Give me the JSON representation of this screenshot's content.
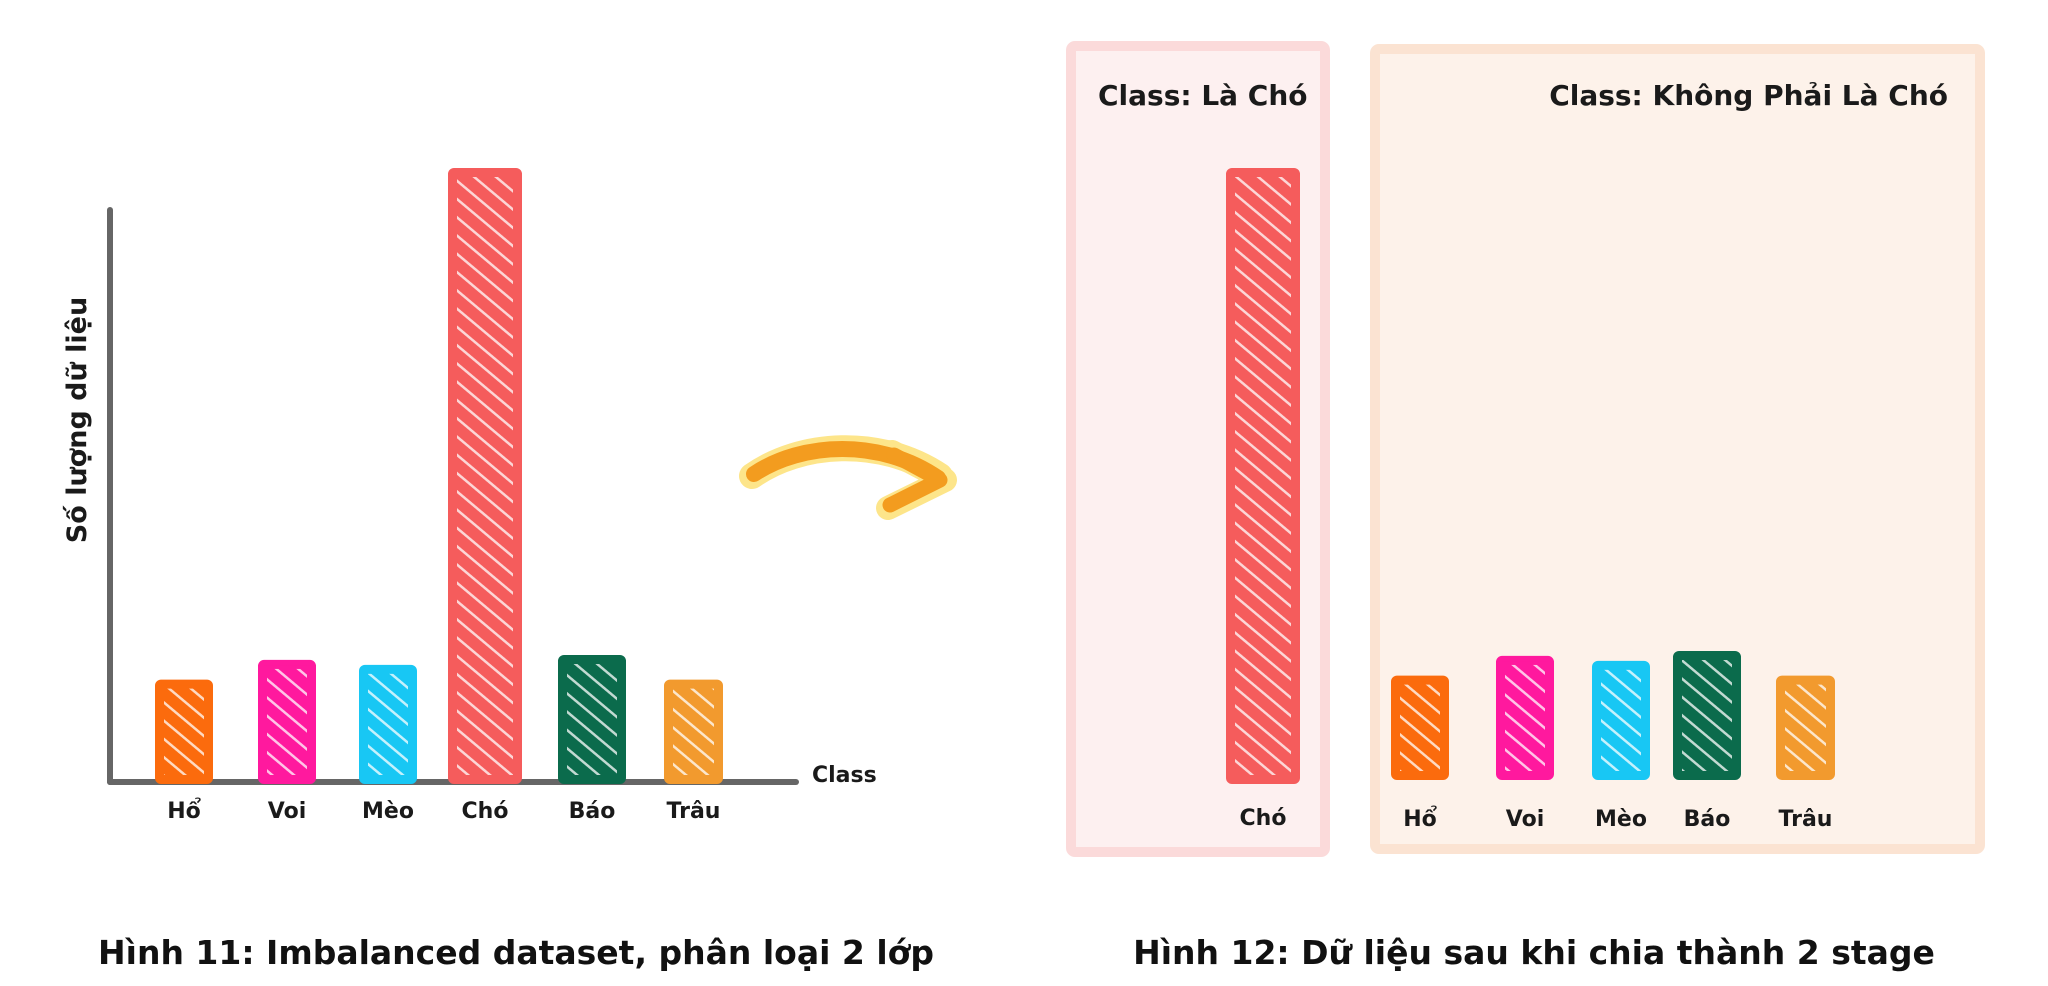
{
  "left_chart": {
    "y_axis_label": "Số lượng dữ liệu",
    "x_axis_label": "Class",
    "caption": "Hình 11: Imbalanced dataset, phân loại 2 lớp"
  },
  "right_panels": {
    "dog_panel_title": "Class: Là Chó",
    "not_dog_panel_title": "Class: Không Phải Là Chó",
    "caption": "Hình 12: Dữ liệu sau khi chia thành 2 stage"
  },
  "colors": {
    "axis": "#666666",
    "arrow": "#f39c1f",
    "arrow_glow": "#fde58a",
    "dog_panel_bg": "#fdf0f0",
    "dog_panel_border": "#fbdada",
    "other_panel_bg": "#fdf2ea",
    "other_panel_border": "#fbe3d2"
  },
  "chart_data": [
    {
      "type": "bar",
      "categories": [
        "Hổ",
        "Voi",
        "Mèo",
        "Chó",
        "Báo",
        "Trâu"
      ],
      "values": [
        1.0,
        1.2,
        1.15,
        6.2,
        1.25,
        1.0
      ],
      "colors": [
        "#fb6b0d",
        "#ff199e",
        "#18c7f4",
        "#f55c5c",
        "#0b6b4c",
        "#f29a2e"
      ],
      "xlabel": "Class",
      "ylabel": "Số lượng dữ liệu"
    },
    {
      "type": "bar",
      "categories": [
        "Chó"
      ],
      "values": [
        6.2
      ],
      "colors": [
        "#f55c5c"
      ],
      "title": "Class: Là Chó"
    },
    {
      "type": "bar",
      "categories": [
        "Hổ",
        "Voi",
        "Mèo",
        "Báo",
        "Trâu"
      ],
      "values": [
        1.0,
        1.2,
        1.15,
        1.25,
        1.0
      ],
      "colors": [
        "#fb6b0d",
        "#ff199e",
        "#18c7f4",
        "#0b6b4c",
        "#f29a2e"
      ],
      "title": "Class: Không Phải Là Chó"
    }
  ]
}
